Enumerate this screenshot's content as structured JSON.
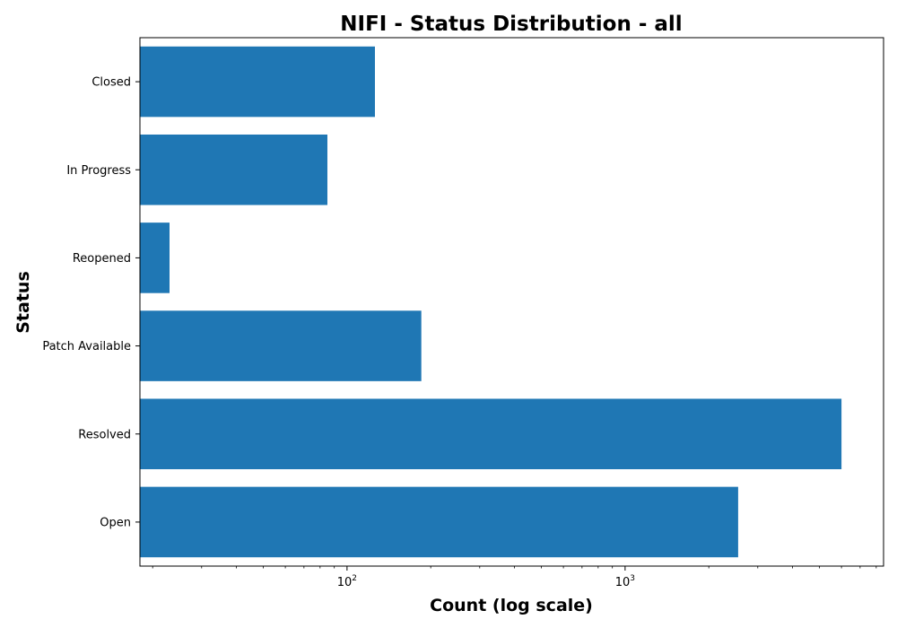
{
  "chart_data": {
    "type": "bar",
    "orientation": "horizontal",
    "title": "NIFI - Status Distribution - all",
    "xlabel": "Count (log scale)",
    "ylabel": "Status",
    "xscale": "log",
    "xlim": [
      18,
      8500
    ],
    "xticks": [
      {
        "base": "10",
        "exp": "2",
        "value": 100
      },
      {
        "base": "10",
        "exp": "3",
        "value": 1000
      }
    ],
    "categories": [
      "Open",
      "Resolved",
      "Patch Available",
      "Reopened",
      "In Progress",
      "Closed"
    ],
    "values": [
      2550,
      6000,
      185,
      23,
      85,
      126
    ],
    "bar_color": "#1f77b4",
    "grid": false,
    "legend": "none"
  }
}
